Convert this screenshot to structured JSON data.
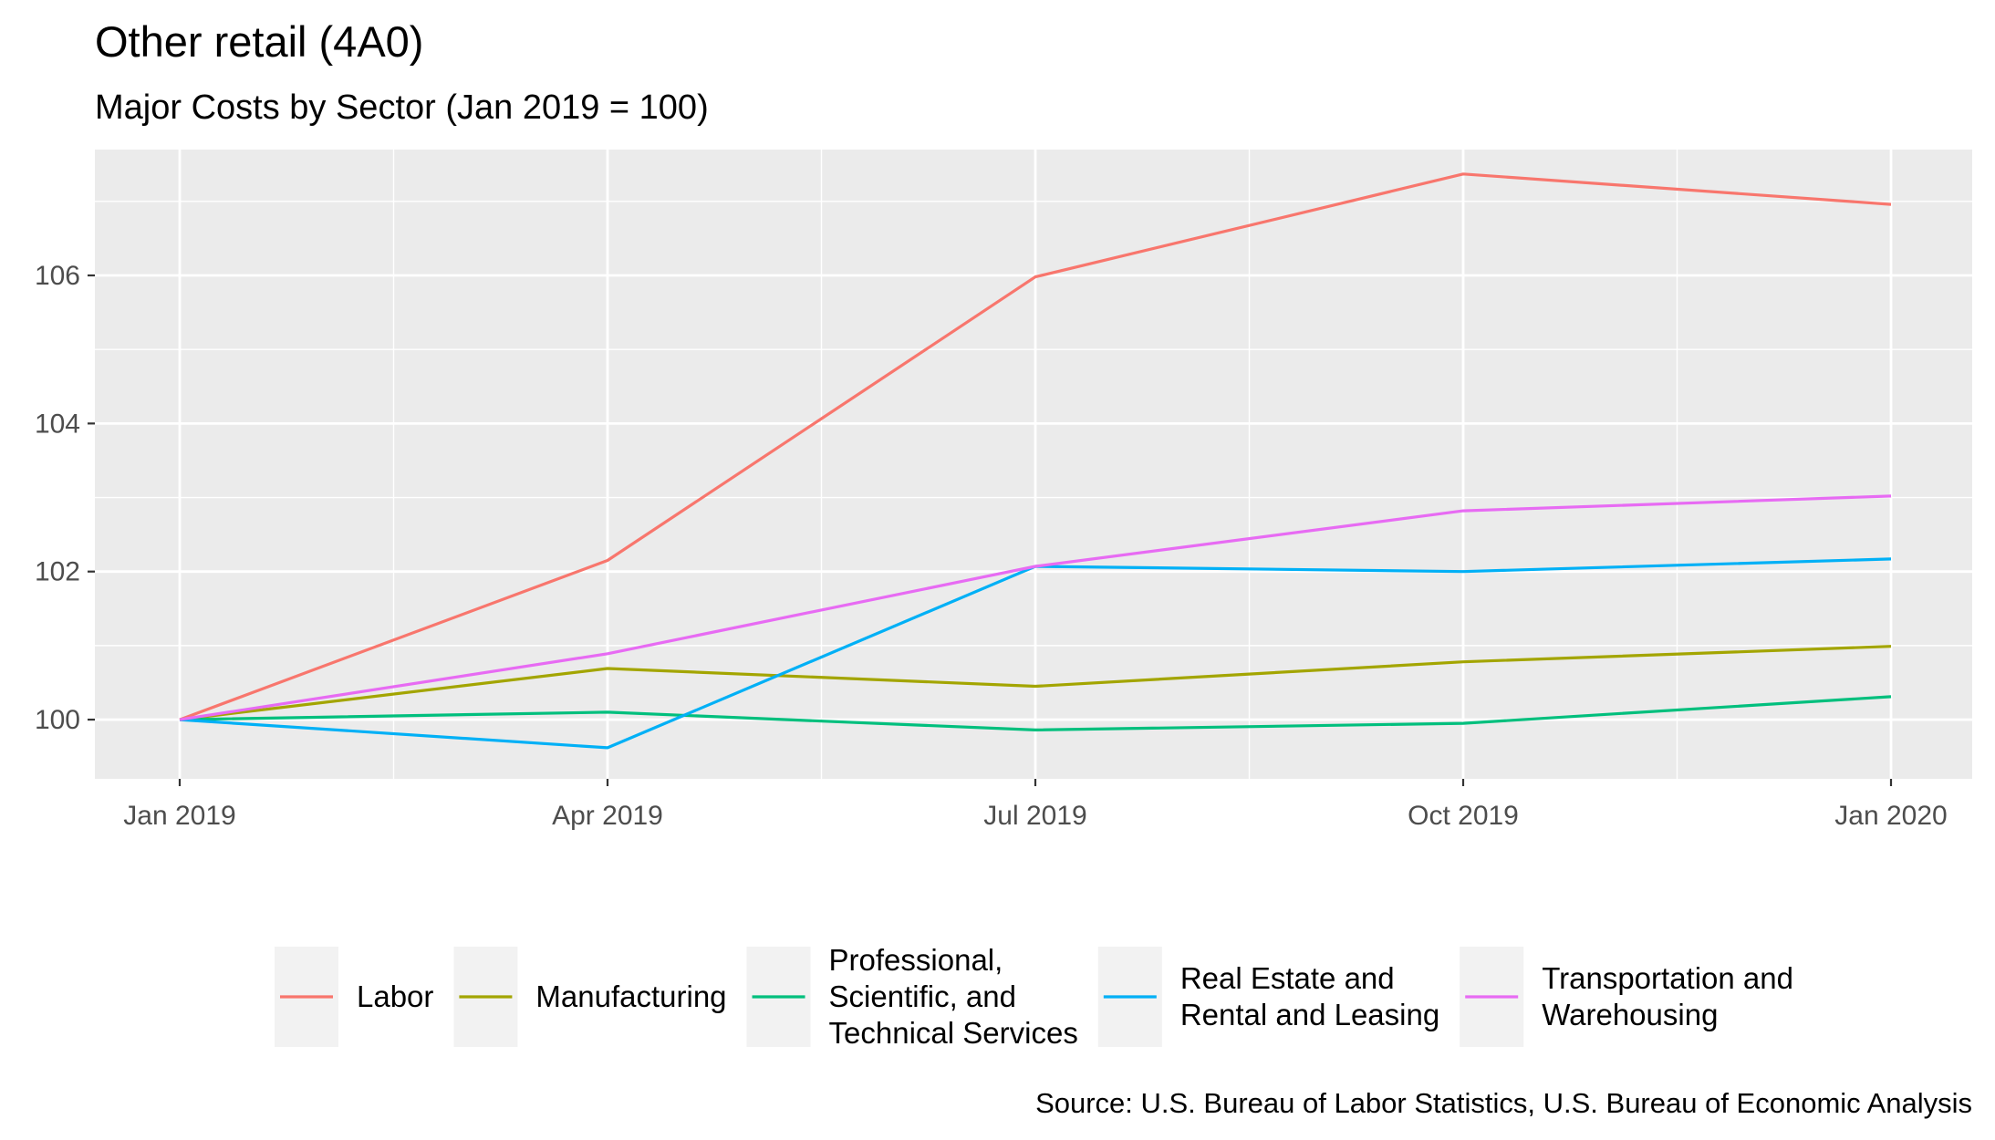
{
  "chart_data": {
    "type": "line",
    "title": "Other retail (4A0)",
    "subtitle": "Major Costs by Sector (Jan 2019 = 100)",
    "caption": "Source: U.S. Bureau of Labor Statistics, U.S. Bureau of Economic Analysis",
    "xlabel": "",
    "ylabel": "",
    "x": [
      "Jan 2019",
      "Apr 2019",
      "Jul 2019",
      "Oct 2019",
      "Jan 2020"
    ],
    "x_tick_labels": [
      "Jan 2019",
      "Apr 2019",
      "Jul 2019",
      "Oct 2019",
      "Jan 2020"
    ],
    "y_ticks": [
      100,
      102,
      104,
      106
    ],
    "y_tick_labels": [
      "100",
      "102",
      "104",
      "106"
    ],
    "ylim": [
      99.2,
      107.7
    ],
    "grid": true,
    "legend_position": "bottom",
    "series": [
      {
        "name": "Labor",
        "color": "#F8766D",
        "legend_lines": [
          "Labor"
        ],
        "values": [
          100,
          102.15,
          105.98,
          107.37,
          106.96
        ]
      },
      {
        "name": "Manufacturing",
        "color": "#A3A500",
        "legend_lines": [
          "Manufacturing"
        ],
        "values": [
          100,
          100.69,
          100.45,
          100.78,
          100.99
        ]
      },
      {
        "name": "Professional, Scientific, and Technical Services",
        "color": "#00BF7D",
        "legend_lines": [
          "Professional,",
          "Scientific, and",
          "Technical Services"
        ],
        "values": [
          100,
          100.1,
          99.86,
          99.95,
          100.31
        ]
      },
      {
        "name": "Real Estate and Rental and Leasing",
        "color": "#00B0F6",
        "legend_lines": [
          "Real Estate and",
          "Rental and Leasing"
        ],
        "values": [
          100,
          99.62,
          102.07,
          102.0,
          102.17
        ]
      },
      {
        "name": "Transportation and Warehousing",
        "color": "#E76BF3",
        "legend_lines": [
          "Transportation and",
          "Warehousing"
        ],
        "values": [
          100,
          100.89,
          102.07,
          102.82,
          103.02
        ]
      }
    ]
  }
}
